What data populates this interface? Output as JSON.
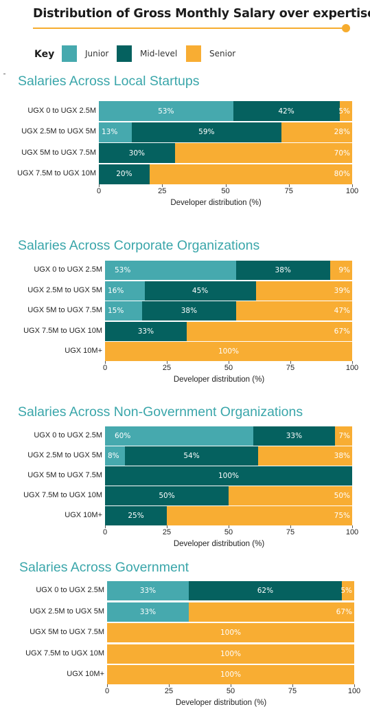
{
  "title": "Distribution of Gross Monthly Salary over expertise",
  "legend": {
    "label": "Key",
    "items": [
      {
        "name": "Junior",
        "color": "#46a9ae"
      },
      {
        "name": "Mid-level",
        "color": "#05615f"
      },
      {
        "name": "Senior",
        "color": "#f8ad33"
      }
    ]
  },
  "chart_data": [
    {
      "type": "bar",
      "orientation": "horizontal",
      "stacked": true,
      "title": "Salaries Across Local Startups",
      "xlabel": "Developer distribution (%)",
      "ylabel": "",
      "xlim": [
        0,
        100
      ],
      "xticks": [
        0,
        25,
        50,
        75,
        100
      ],
      "categories": [
        "UGX 0 to UGX 2.5M",
        "UGX 2.5M to UGX 5M",
        "UGX 5M to UGX 7.5M",
        "UGX 7.5M to UGX 10M"
      ],
      "series": [
        {
          "name": "Junior",
          "values": [
            53,
            13,
            0,
            0
          ],
          "labels": [
            "53%",
            "13%",
            "",
            ""
          ]
        },
        {
          "name": "Mid-level",
          "values": [
            42,
            59,
            30,
            20
          ],
          "labels": [
            "42%",
            "59%",
            "30%",
            "20%"
          ]
        },
        {
          "name": "Senior",
          "values": [
            5,
            28,
            70,
            80
          ],
          "labels": [
            "5%",
            "28%",
            "70%",
            "80%"
          ]
        }
      ]
    },
    {
      "type": "bar",
      "orientation": "horizontal",
      "stacked": true,
      "title": "Salaries Across Corporate Organizations",
      "xlabel": "Developer distribution (%)",
      "ylabel": "",
      "xlim": [
        0,
        100
      ],
      "xticks": [
        0,
        25,
        50,
        75,
        100
      ],
      "categories": [
        "UGX 0 to UGX 2.5M",
        "UGX 2.5M to UGX 5M",
        "UGX 5M to UGX 7.5M",
        "UGX 7.5M to UGX 10M",
        "UGX 10M+"
      ],
      "series": [
        {
          "name": "Junior",
          "values": [
            53,
            16,
            15,
            0,
            0
          ],
          "labels": [
            "53%",
            "16%",
            "15%",
            "",
            ""
          ]
        },
        {
          "name": "Mid-level",
          "values": [
            38,
            45,
            38,
            33,
            0
          ],
          "labels": [
            "38%",
            "45%",
            "38%",
            "33%",
            ""
          ]
        },
        {
          "name": "Senior",
          "values": [
            9,
            39,
            47,
            67,
            100
          ],
          "labels": [
            "9%",
            "39%",
            "47%",
            "67%",
            "100%"
          ]
        }
      ]
    },
    {
      "type": "bar",
      "orientation": "horizontal",
      "stacked": true,
      "title": "Salaries Across Non-Government Organizations",
      "xlabel": "Developer distribution (%)",
      "ylabel": "",
      "xlim": [
        0,
        100
      ],
      "xticks": [
        0,
        25,
        50,
        75,
        100
      ],
      "categories": [
        "UGX 0 to UGX 2.5M",
        "UGX 2.5M to UGX 5M",
        "UGX 5M to UGX 7.5M",
        "UGX 7.5M to UGX 10M",
        "UGX 10M+"
      ],
      "series": [
        {
          "name": "Junior",
          "values": [
            60,
            8,
            0,
            0,
            0
          ],
          "labels": [
            "60%",
            "8%",
            "",
            "",
            ""
          ]
        },
        {
          "name": "Mid-level",
          "values": [
            33,
            54,
            100,
            50,
            25
          ],
          "labels": [
            "33%",
            "54%",
            "100%",
            "50%",
            "25%"
          ]
        },
        {
          "name": "Senior",
          "values": [
            7,
            38,
            0,
            50,
            75
          ],
          "labels": [
            "7%",
            "38%",
            "",
            "50%",
            "75%"
          ]
        }
      ]
    },
    {
      "type": "bar",
      "orientation": "horizontal",
      "stacked": true,
      "title": "Salaries Across Government",
      "xlabel": "Developer distribution (%)",
      "ylabel": "",
      "xlim": [
        0,
        100
      ],
      "xticks": [
        0,
        25,
        50,
        75,
        100
      ],
      "categories": [
        "UGX 0 to UGX 2.5M",
        "UGX 2.5M to UGX 5M",
        "UGX 5M to UGX 7.5M",
        "UGX 7.5M to UGX 10M",
        "UGX 10M+"
      ],
      "series": [
        {
          "name": "Junior",
          "values": [
            33,
            33,
            0,
            0,
            0
          ],
          "labels": [
            "33%",
            "33%",
            "",
            "",
            ""
          ]
        },
        {
          "name": "Mid-level",
          "values": [
            62,
            0,
            0,
            0,
            0
          ],
          "labels": [
            "62%",
            "",
            "",
            "",
            ""
          ]
        },
        {
          "name": "Senior",
          "values": [
            5,
            67,
            100,
            100,
            100
          ],
          "labels": [
            "5%",
            "67%",
            "100%",
            "100%",
            "100%"
          ]
        }
      ]
    }
  ]
}
